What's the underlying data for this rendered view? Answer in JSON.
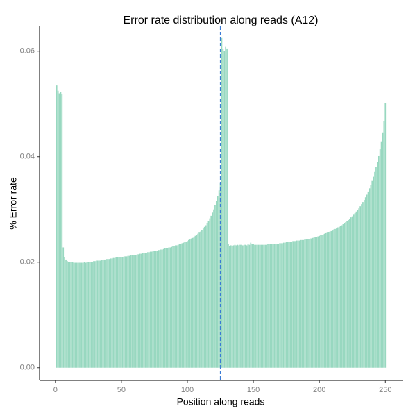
{
  "chart_data": {
    "type": "bar",
    "title": "Error rate distribution along reads (A12)",
    "x_label": "Position along reads",
    "y_label": "% Error rate",
    "color": "#98d8c0",
    "vline": 125,
    "vline_color": "#3a7bd5",
    "xlim": [
      -12,
      263
    ],
    "ylim": [
      -0.0024,
      0.0647
    ],
    "xticks": [
      0,
      50,
      100,
      150,
      200,
      250
    ],
    "yticks": [
      {
        "value": 0,
        "label": "0.00"
      },
      0.02,
      0.04,
      0.06
    ],
    "x": [
      1,
      2,
      3,
      4,
      5,
      6,
      7,
      8,
      9,
      10,
      11,
      12,
      13,
      14,
      15,
      16,
      17,
      18,
      19,
      20,
      21,
      22,
      23,
      24,
      25,
      26,
      27,
      28,
      29,
      30,
      31,
      32,
      33,
      34,
      35,
      36,
      37,
      38,
      39,
      40,
      41,
      42,
      43,
      44,
      45,
      46,
      47,
      48,
      49,
      50,
      51,
      52,
      53,
      54,
      55,
      56,
      57,
      58,
      59,
      60,
      61,
      62,
      63,
      64,
      65,
      66,
      67,
      68,
      69,
      70,
      71,
      72,
      73,
      74,
      75,
      76,
      77,
      78,
      79,
      80,
      81,
      82,
      83,
      84,
      85,
      86,
      87,
      88,
      89,
      90,
      91,
      92,
      93,
      94,
      95,
      96,
      97,
      98,
      99,
      100,
      101,
      102,
      103,
      104,
      105,
      106,
      107,
      108,
      109,
      110,
      111,
      112,
      113,
      114,
      115,
      116,
      117,
      118,
      119,
      120,
      121,
      122,
      123,
      124,
      125,
      126,
      127,
      128,
      129,
      130,
      131,
      132,
      133,
      134,
      135,
      136,
      137,
      138,
      139,
      140,
      141,
      142,
      143,
      144,
      145,
      146,
      147,
      148,
      149,
      150,
      151,
      152,
      153,
      154,
      155,
      156,
      157,
      158,
      159,
      160,
      161,
      162,
      163,
      164,
      165,
      166,
      167,
      168,
      169,
      170,
      171,
      172,
      173,
      174,
      175,
      176,
      177,
      178,
      179,
      180,
      181,
      182,
      183,
      184,
      185,
      186,
      187,
      188,
      189,
      190,
      191,
      192,
      193,
      194,
      195,
      196,
      197,
      198,
      199,
      200,
      201,
      202,
      203,
      204,
      205,
      206,
      207,
      208,
      209,
      210,
      211,
      212,
      213,
      214,
      215,
      216,
      217,
      218,
      219,
      220,
      221,
      222,
      223,
      224,
      225,
      226,
      227,
      228,
      229,
      230,
      231,
      232,
      233,
      234,
      235,
      236,
      237,
      238,
      239,
      240,
      241,
      242,
      243,
      244,
      245,
      246,
      247,
      248,
      249,
      250
    ],
    "values": [
      0.0535,
      0.0525,
      0.052,
      0.0522,
      0.0518,
      0.0228,
      0.021,
      0.0205,
      0.0202,
      0.0201,
      0.02,
      0.02,
      0.02,
      0.0199,
      0.0199,
      0.0199,
      0.0199,
      0.0199,
      0.0199,
      0.0199,
      0.0199,
      0.02,
      0.0199,
      0.02,
      0.02,
      0.02,
      0.0201,
      0.0201,
      0.0202,
      0.0202,
      0.0203,
      0.0203,
      0.0203,
      0.0203,
      0.0204,
      0.0204,
      0.0205,
      0.0205,
      0.0206,
      0.0206,
      0.0206,
      0.0207,
      0.0207,
      0.0208,
      0.0208,
      0.0209,
      0.0209,
      0.0209,
      0.021,
      0.021,
      0.021,
      0.0211,
      0.0211,
      0.0211,
      0.0212,
      0.0212,
      0.0213,
      0.0213,
      0.0213,
      0.0214,
      0.0214,
      0.0215,
      0.0215,
      0.0216,
      0.0216,
      0.0217,
      0.0217,
      0.0218,
      0.0218,
      0.0219,
      0.0219,
      0.022,
      0.022,
      0.0221,
      0.0221,
      0.0222,
      0.0222,
      0.0223,
      0.0223,
      0.0224,
      0.0224,
      0.0225,
      0.0226,
      0.0226,
      0.0227,
      0.0228,
      0.0228,
      0.0229,
      0.023,
      0.0231,
      0.0232,
      0.0232,
      0.0233,
      0.0234,
      0.0235,
      0.0236,
      0.0237,
      0.0238,
      0.0239,
      0.024,
      0.0242,
      0.0243,
      0.0245,
      0.0246,
      0.0248,
      0.025,
      0.0252,
      0.0254,
      0.0256,
      0.0258,
      0.0261,
      0.0264,
      0.0267,
      0.027,
      0.0274,
      0.0278,
      0.0283,
      0.0288,
      0.0294,
      0.03,
      0.0308,
      0.0316,
      0.0325,
      0.0336,
      0.035,
      0.0625,
      0.0605,
      0.06,
      0.0608,
      0.0605,
      0.0235,
      0.023,
      0.0232,
      0.0231,
      0.0232,
      0.0233,
      0.0232,
      0.0233,
      0.0232,
      0.0233,
      0.0233,
      0.0232,
      0.0233,
      0.0233,
      0.0232,
      0.0234,
      0.0233,
      0.0237,
      0.0235,
      0.0234,
      0.0233,
      0.0233,
      0.0233,
      0.0233,
      0.0233,
      0.0233,
      0.0233,
      0.0233,
      0.0233,
      0.0233,
      0.0234,
      0.0234,
      0.0234,
      0.0234,
      0.0234,
      0.0235,
      0.0235,
      0.0235,
      0.0235,
      0.0236,
      0.0236,
      0.0236,
      0.0237,
      0.0237,
      0.0238,
      0.0238,
      0.0238,
      0.0239,
      0.0239,
      0.024,
      0.024,
      0.024,
      0.0241,
      0.0241,
      0.0241,
      0.0242,
      0.0242,
      0.0242,
      0.0243,
      0.0243,
      0.0244,
      0.0244,
      0.0245,
      0.0245,
      0.0246,
      0.0247,
      0.0247,
      0.0248,
      0.0249,
      0.025,
      0.0251,
      0.0252,
      0.0253,
      0.0254,
      0.0255,
      0.0256,
      0.0257,
      0.0258,
      0.0259,
      0.026,
      0.0262,
      0.0263,
      0.0264,
      0.0266,
      0.0267,
      0.0269,
      0.027,
      0.0272,
      0.0274,
      0.0276,
      0.0278,
      0.028,
      0.0282,
      0.0285,
      0.0287,
      0.029,
      0.0293,
      0.0296,
      0.0299,
      0.0302,
      0.0306,
      0.031,
      0.0314,
      0.0318,
      0.0323,
      0.0328,
      0.0334,
      0.034,
      0.0347,
      0.0354,
      0.0362,
      0.0371,
      0.038,
      0.039,
      0.0401,
      0.0414,
      0.0429,
      0.0446,
      0.0468,
      0.0502
    ]
  }
}
